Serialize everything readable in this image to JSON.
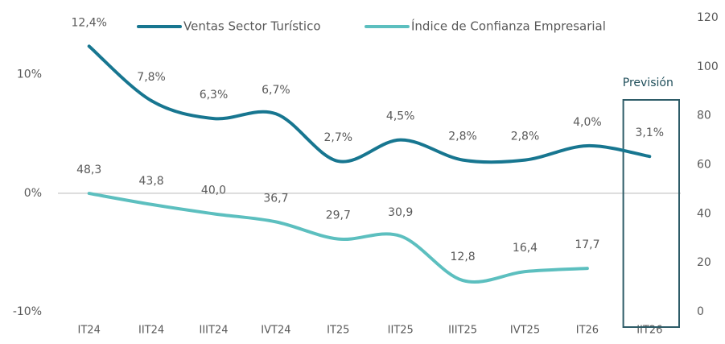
{
  "chart_data": {
    "type": "line",
    "categories": [
      "IT24",
      "IIT24",
      "IIIT24",
      "IVT24",
      "IT25",
      "IIT25",
      "IIIT25",
      "IVT25",
      "IT26",
      "IIT26"
    ],
    "series": [
      {
        "name": "Ventas Sector Turístico",
        "color": "#177690",
        "values": [
          12.4,
          7.8,
          6.3,
          6.7,
          2.7,
          4.5,
          2.8,
          2.8,
          4.0,
          3.1
        ],
        "value_labels": [
          "12,4%",
          "7,8%",
          "6,3%",
          "6,7%",
          "2,7%",
          "4,5%",
          "2,8%",
          "2,8%",
          "4,0%",
          "3,1%"
        ]
      },
      {
        "name": "Índice de Confianza Empresarial",
        "color": "#5cbfbf",
        "axis": "y2",
        "values": [
          48.3,
          43.8,
          40.0,
          36.7,
          29.7,
          30.9,
          12.8,
          16.4,
          17.7,
          null
        ],
        "value_labels": [
          "48,3",
          "43,8",
          "40,0",
          "36,7",
          "29,7",
          "30,9",
          "12,8",
          "16,4",
          "17,7",
          null
        ]
      }
    ],
    "ylim": [
      -10,
      14.8
    ],
    "yticks": [
      {
        "value": -10,
        "label": "-10%"
      },
      {
        "value": 0,
        "label": "0%"
      },
      {
        "value": 10,
        "label": "10%"
      }
    ],
    "y2lim": [
      0,
      120
    ],
    "y2ticks": [
      0,
      20,
      40,
      60,
      80,
      100,
      120
    ],
    "legend": "top",
    "annotation": "Previsión"
  }
}
